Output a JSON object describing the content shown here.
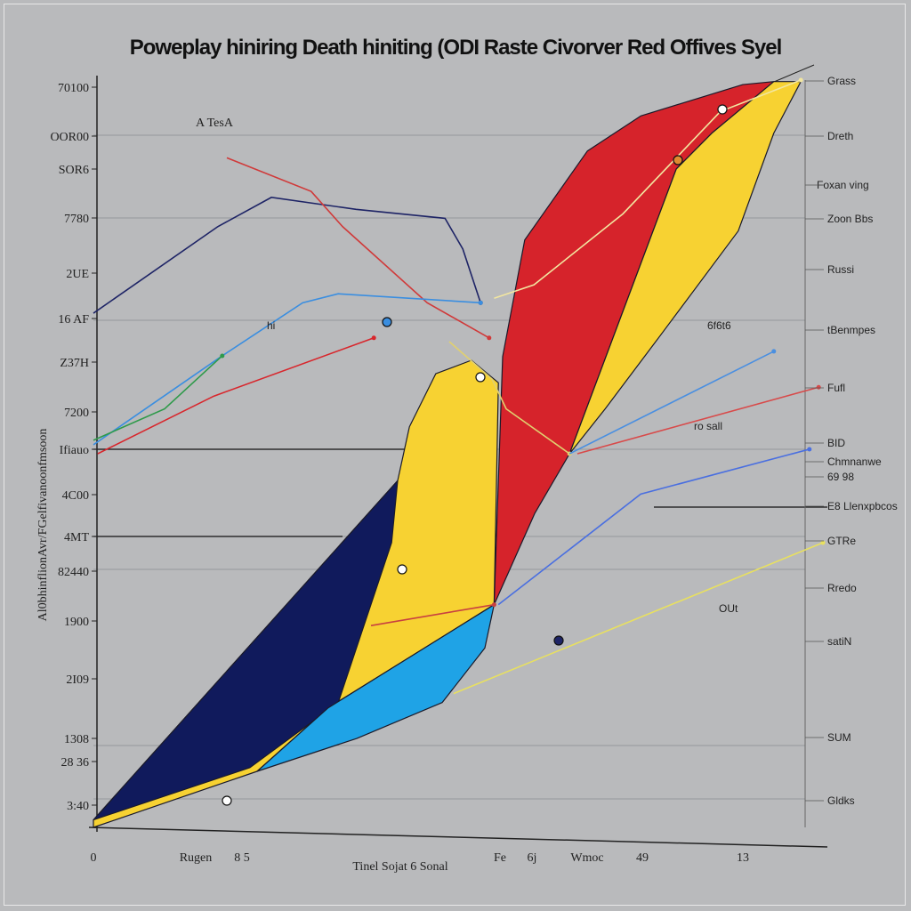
{
  "chart_data": {
    "type": "area",
    "title": "Poweplay hiniring Death hiniting (ODI Raste Civorver Red Offives Syel",
    "xlabel": "Tinel Sojat 6 Sonal",
    "ylabel": "Al0bhinflionAvr/FGelfivanoonfmsoon",
    "annotation": "A TesA",
    "xlim": [
      0,
      100
    ],
    "ylim": [
      0,
      100
    ],
    "grid": true,
    "y_tick_labels": [
      "70100",
      "OOR00",
      "SOR6",
      "7780",
      "2UE",
      "16 AF",
      "Z37H",
      "7200",
      "Ifiauo",
      "4C00",
      "4MT",
      "82440",
      "1900",
      "2I09",
      "1308",
      "28 36",
      "3:40"
    ],
    "x_tick_labels": [
      "0",
      "Rugen",
      "8 5",
      "Fe",
      "6j",
      "Wmoc",
      "49",
      "13"
    ],
    "right_labels": [
      {
        "text": "Grass",
        "color": "#222222"
      },
      {
        "text": "Dreth",
        "color": "#222222"
      },
      {
        "text": "Foxan ving",
        "color": "#222222"
      },
      {
        "text": "Zoon Bbs",
        "color": "#222222"
      },
      {
        "text": "Russi",
        "color": "#222222"
      },
      {
        "text": "tBenmpes",
        "color": "#222222"
      },
      {
        "text": "Fufl",
        "color": "#222222"
      },
      {
        "text": "BID",
        "color": "#1f4fa8"
      },
      {
        "text": "Chmnanwe",
        "color": "#222222"
      },
      {
        "text": "69 98",
        "color": "#c8202a"
      },
      {
        "text": "E8 Llenxpbcos",
        "color": "#222222"
      },
      {
        "text": "GTRe",
        "color": "#222222"
      },
      {
        "text": "Rredo",
        "color": "#222222"
      },
      {
        "text": "satiN",
        "color": "#222222"
      },
      {
        "text": "SUM",
        "color": "#222222"
      },
      {
        "text": "Gldks",
        "color": "#c8202a"
      }
    ],
    "inline_labels": [
      "hi",
      "6f6t6",
      "ro sall",
      "OUt"
    ],
    "areas": [
      {
        "color": "#f7d232",
        "points": [
          [
            0,
            0
          ],
          [
            23,
            7.5
          ],
          [
            33,
            16
          ],
          [
            56.3,
            29.8
          ],
          [
            56.9,
            59.5
          ],
          [
            53.1,
            62.5
          ],
          [
            48.1,
            60.7
          ],
          [
            44.4,
            53.6
          ],
          [
            42.75,
            46.4
          ],
          [
            0,
            1
          ]
        ]
      },
      {
        "color": "#101a5c",
        "points": [
          [
            0,
            1
          ],
          [
            42.75,
            46.4
          ],
          [
            41.9,
            38.1
          ],
          [
            34.4,
            16.7
          ],
          [
            22,
            8
          ]
        ]
      },
      {
        "color": "#1fa3e6",
        "points": [
          [
            23,
            7.5
          ],
          [
            33,
            16
          ],
          [
            56.3,
            29.8
          ],
          [
            55,
            24
          ],
          [
            49,
            16.7
          ],
          [
            37,
            11.9
          ]
        ]
      },
      {
        "color": "#d6232b",
        "points": [
          [
            56.3,
            29.8
          ],
          [
            57.5,
            63
          ],
          [
            60.6,
            78.6
          ],
          [
            69.4,
            90.5
          ],
          [
            76.9,
            95.2
          ],
          [
            91.25,
            99.4
          ],
          [
            95.6,
            99.8
          ],
          [
            86.9,
            92.9
          ],
          [
            81.9,
            88.1
          ],
          [
            66.9,
            50
          ],
          [
            62,
            42
          ]
        ]
      },
      {
        "color": "#f7d232",
        "points": [
          [
            66.9,
            50
          ],
          [
            81.9,
            88.1
          ],
          [
            86.9,
            92.9
          ],
          [
            95.6,
            99.8
          ],
          [
            99.4,
            99.8
          ],
          [
            95.6,
            92.9
          ],
          [
            90.6,
            79.8
          ],
          [
            79.4,
            65.5
          ],
          [
            71.9,
            56
          ]
        ]
      }
    ],
    "lines": [
      {
        "color": "#1e2466",
        "points": [
          [
            0,
            68.8
          ],
          [
            17.5,
            80.4
          ],
          [
            25,
            84.3
          ],
          [
            36.9,
            82.7
          ],
          [
            49.4,
            81.5
          ],
          [
            51.9,
            77.4
          ],
          [
            54.4,
            70.2
          ]
        ]
      },
      {
        "color": "#d03a3a",
        "points": [
          [
            18.75,
            89.6
          ],
          [
            30.6,
            85.1
          ],
          [
            35,
            80.4
          ],
          [
            46.9,
            70.2
          ],
          [
            55.6,
            65.5
          ]
        ]
      },
      {
        "color": "#3a8ee0",
        "points": [
          [
            0,
            51.2
          ],
          [
            18.1,
            63.1
          ],
          [
            29.4,
            70.2
          ],
          [
            34.4,
            71.4
          ],
          [
            54.4,
            70.2
          ]
        ]
      },
      {
        "color": "#2e9a4a",
        "points": [
          [
            0,
            51.8
          ],
          [
            10,
            56
          ],
          [
            18.1,
            63.1
          ]
        ]
      },
      {
        "color": "#d8262c",
        "points": [
          [
            0.6,
            50
          ],
          [
            16.9,
            57.7
          ],
          [
            39.4,
            65.5
          ]
        ]
      },
      {
        "color": "#f2e6a0",
        "points": [
          [
            56.3,
            70.8
          ],
          [
            61.9,
            72.6
          ],
          [
            74.4,
            82.1
          ],
          [
            88.1,
            95.8
          ],
          [
            99.4,
            100
          ]
        ]
      },
      {
        "color": "#e0d070",
        "points": [
          [
            50,
            65
          ],
          [
            56,
            60
          ],
          [
            58,
            56
          ],
          [
            66.9,
            50
          ]
        ]
      },
      {
        "color": "#4a8fe0",
        "points": [
          [
            66.9,
            50
          ],
          [
            95.6,
            63.7
          ]
        ]
      },
      {
        "color": "#d84a4a",
        "points": [
          [
            68,
            50
          ],
          [
            101.9,
            58.9
          ]
        ]
      },
      {
        "color": "#4a6fe0",
        "points": [
          [
            56.9,
            29.8
          ],
          [
            76.9,
            44.6
          ],
          [
            100.6,
            50.6
          ]
        ]
      },
      {
        "color": "#e8e060",
        "points": [
          [
            50.6,
            17.9
          ],
          [
            102.5,
            38.1
          ]
        ]
      },
      {
        "color": "#c84040",
        "points": [
          [
            39,
            27
          ],
          [
            56.3,
            29.8
          ]
        ]
      }
    ]
  }
}
